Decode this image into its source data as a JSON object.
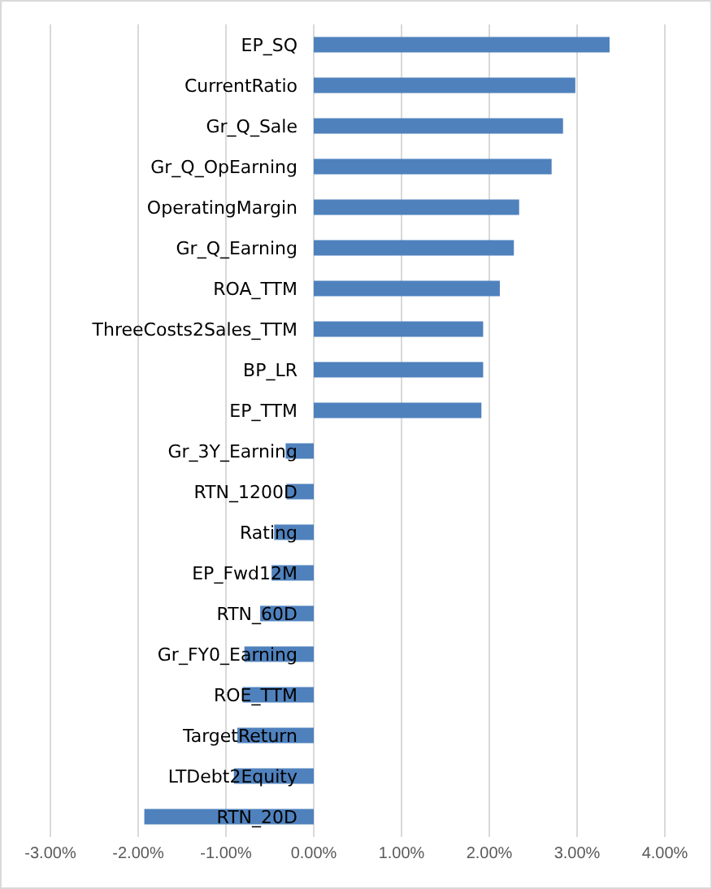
{
  "chart_data": {
    "type": "bar",
    "orientation": "horizontal",
    "categories": [
      "EP_SQ",
      "CurrentRatio",
      "Gr_Q_Sale",
      "Gr_Q_OpEarning",
      "OperatingMargin",
      "Gr_Q_Earning",
      "ROA_TTM",
      "ThreeCosts2Sales_TTM",
      "BP_LR",
      "EP_TTM",
      "Gr_3Y_Earning",
      "RTN_1200D",
      "Rating",
      "EP_Fwd12M",
      "RTN_60D",
      "Gr_FY0_Earning",
      "ROE_TTM",
      "TargetReturn",
      "LTDebt2Equity",
      "RTN_20D"
    ],
    "values": [
      3.37,
      2.98,
      2.84,
      2.71,
      2.34,
      2.28,
      2.12,
      1.93,
      1.93,
      1.91,
      -0.32,
      -0.31,
      -0.45,
      -0.48,
      -0.61,
      -0.79,
      -0.81,
      -0.87,
      -0.91,
      -1.93
    ],
    "color": "#4f81bd",
    "xlim": [
      -3,
      4
    ],
    "xticks": [
      {
        "value": -3,
        "label": "-3.00%"
      },
      {
        "value": -2,
        "label": "-2.00%"
      },
      {
        "value": -1,
        "label": "-1.00%"
      },
      {
        "value": 0,
        "label": "0.00%"
      },
      {
        "value": 1,
        "label": "1.00%"
      },
      {
        "value": 2,
        "label": "2.00%"
      },
      {
        "value": 3,
        "label": "3.00%"
      },
      {
        "value": 4,
        "label": "4.00%"
      }
    ],
    "grid": "x"
  }
}
